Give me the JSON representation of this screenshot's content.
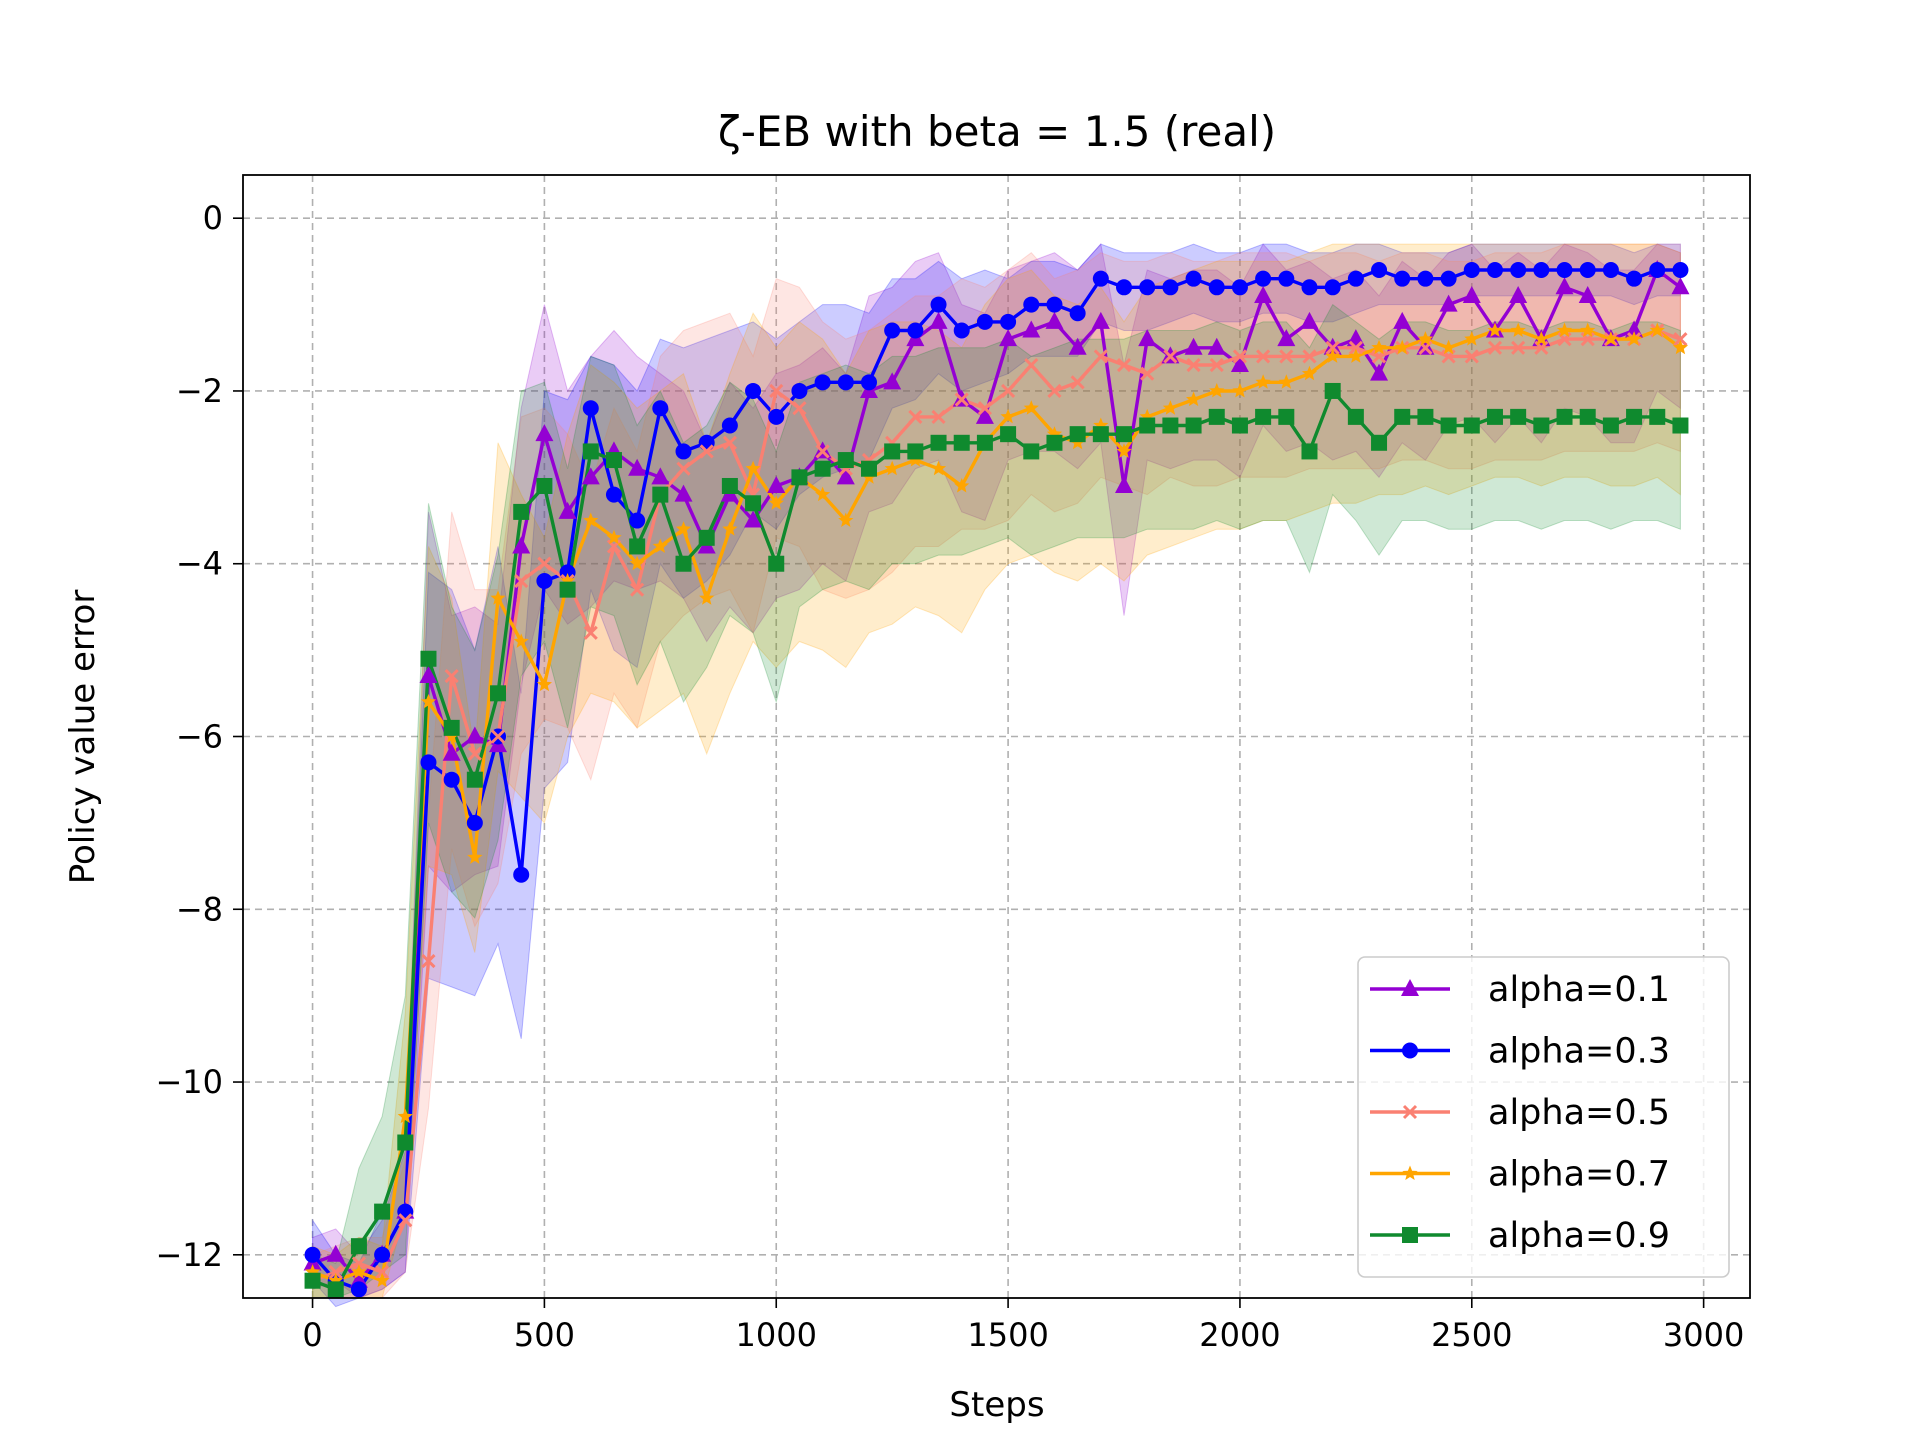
{
  "chart_data": {
    "type": "line",
    "title": "ζ-EB with beta = 1.5 (real)",
    "xlabel": "Steps",
    "ylabel": "Policy value error",
    "xlim": [
      -150,
      3100
    ],
    "ylim": [
      -12.5,
      0.5
    ],
    "xticks": [
      0,
      500,
      1000,
      1500,
      2000,
      2500,
      3000
    ],
    "xtick_labels": [
      "0",
      "500",
      "1000",
      "1500",
      "2000",
      "2500",
      "3000"
    ],
    "yticks": [
      0,
      -2,
      -4,
      -6,
      -8,
      -10,
      -12
    ],
    "ytick_labels": [
      "0",
      "−2",
      "−4",
      "−6",
      "−8",
      "−10",
      "−12"
    ],
    "grid": true,
    "legend_position": "lower-right",
    "x": [
      0,
      50,
      100,
      150,
      200,
      250,
      300,
      350,
      400,
      450,
      500,
      550,
      600,
      650,
      700,
      750,
      800,
      850,
      900,
      950,
      1000,
      1050,
      1100,
      1150,
      1200,
      1250,
      1300,
      1350,
      1400,
      1450,
      1500,
      1550,
      1600,
      1650,
      1700,
      1750,
      1800,
      1850,
      1900,
      1950,
      2000,
      2050,
      2100,
      2150,
      2200,
      2250,
      2300,
      2350,
      2400,
      2450,
      2500,
      2550,
      2600,
      2650,
      2700,
      2750,
      2800,
      2850,
      2900,
      2950
    ],
    "series": [
      {
        "name": "alpha=0.1",
        "color": "#9400D3",
        "marker": "triangle",
        "values": [
          -12.1,
          -12.0,
          -12.3,
          -12.0,
          -11.5,
          -5.3,
          -6.2,
          -6.0,
          -6.1,
          -3.8,
          -2.5,
          -3.4,
          -3.0,
          -2.7,
          -2.9,
          -3.0,
          -3.2,
          -3.8,
          -3.2,
          -3.5,
          -3.1,
          -3.0,
          -2.7,
          -3.0,
          -2.0,
          -1.9,
          -1.4,
          -1.2,
          -2.1,
          -2.3,
          -1.4,
          -1.3,
          -1.2,
          -1.5,
          -1.2,
          -3.1,
          -1.4,
          -1.6,
          -1.5,
          -1.5,
          -1.7,
          -0.9,
          -1.4,
          -1.2,
          -1.5,
          -1.4,
          -1.8,
          -1.2,
          -1.5,
          -1.0,
          -0.9,
          -1.3,
          -0.9,
          -1.4,
          -0.8,
          -0.9,
          -1.4,
          -1.3,
          -0.6,
          -0.8
        ],
        "lower": [
          -12.4,
          -12.3,
          -12.5,
          -12.4,
          -12.2,
          -7.5,
          -7.8,
          -7.6,
          -7.5,
          -5.4,
          -4.3,
          -4.7,
          -4.5,
          -4.2,
          -4.3,
          -4.2,
          -4.4,
          -4.9,
          -4.5,
          -4.8,
          -4.4,
          -4.3,
          -4.0,
          -4.2,
          -3.4,
          -3.3,
          -2.9,
          -2.8,
          -3.4,
          -3.5,
          -2.8,
          -2.7,
          -2.7,
          -2.9,
          -2.6,
          -4.6,
          -2.8,
          -2.9,
          -2.8,
          -2.8,
          -3.0,
          -2.4,
          -2.7,
          -2.6,
          -2.8,
          -2.7,
          -3.0,
          -2.6,
          -2.8,
          -2.4,
          -2.3,
          -2.6,
          -2.3,
          -2.6,
          -2.2,
          -2.3,
          -2.6,
          -2.6,
          -2.0,
          -2.2
        ],
        "upper": [
          -11.8,
          -11.7,
          -12.0,
          -11.6,
          -10.8,
          -3.4,
          -4.6,
          -4.5,
          -4.7,
          -2.2,
          -1.0,
          -2.0,
          -1.6,
          -1.3,
          -1.6,
          -1.8,
          -2.0,
          -2.6,
          -1.9,
          -2.2,
          -1.8,
          -1.7,
          -1.5,
          -1.8,
          -0.9,
          -0.8,
          -0.5,
          -0.4,
          -1.0,
          -1.1,
          -0.6,
          -0.5,
          -0.4,
          -0.6,
          -0.3,
          -1.7,
          -0.6,
          -0.7,
          -0.6,
          -0.6,
          -0.8,
          -0.3,
          -0.6,
          -0.5,
          -0.7,
          -0.6,
          -0.9,
          -0.5,
          -0.7,
          -0.4,
          -0.3,
          -0.6,
          -0.4,
          -0.6,
          -0.3,
          -0.4,
          -0.6,
          -0.6,
          -0.3,
          -0.4
        ]
      },
      {
        "name": "alpha=0.3",
        "color": "#0000FF",
        "marker": "circle",
        "values": [
          -12.0,
          -12.3,
          -12.4,
          -12.0,
          -11.5,
          -6.3,
          -6.5,
          -7.0,
          -6.0,
          -7.6,
          -4.2,
          -4.1,
          -2.2,
          -3.2,
          -3.5,
          -2.2,
          -2.7,
          -2.6,
          -2.4,
          -2.0,
          -2.3,
          -2.0,
          -1.9,
          -1.9,
          -1.9,
          -1.3,
          -1.3,
          -1.0,
          -1.3,
          -1.2,
          -1.2,
          -1.0,
          -1.0,
          -1.1,
          -0.7,
          -0.8,
          -0.8,
          -0.8,
          -0.7,
          -0.8,
          -0.8,
          -0.7,
          -0.7,
          -0.8,
          -0.8,
          -0.7,
          -0.6,
          -0.7,
          -0.7,
          -0.7,
          -0.6,
          -0.6,
          -0.6,
          -0.6,
          -0.6,
          -0.6,
          -0.6,
          -0.7,
          -0.6,
          -0.6
        ],
        "lower": [
          -12.3,
          -12.6,
          -12.5,
          -12.4,
          -12.2,
          -8.8,
          -8.9,
          -9.0,
          -8.4,
          -9.5,
          -6.6,
          -6.3,
          -4.3,
          -5.0,
          -5.2,
          -4.0,
          -4.4,
          -4.2,
          -3.9,
          -3.4,
          -3.6,
          -3.2,
          -3.0,
          -2.9,
          -2.8,
          -2.2,
          -2.1,
          -1.8,
          -2.0,
          -1.9,
          -1.8,
          -1.6,
          -1.6,
          -1.6,
          -1.2,
          -1.3,
          -1.3,
          -1.2,
          -1.1,
          -1.2,
          -1.2,
          -1.1,
          -1.1,
          -1.2,
          -1.2,
          -1.1,
          -1.0,
          -1.0,
          -1.0,
          -1.0,
          -0.9,
          -0.9,
          -0.9,
          -0.9,
          -0.9,
          -0.9,
          -0.9,
          -1.0,
          -0.9,
          -0.9
        ],
        "upper": [
          -11.6,
          -12.0,
          -12.1,
          -11.5,
          -10.7,
          -4.1,
          -4.3,
          -5.0,
          -3.8,
          -5.5,
          -2.0,
          -2.1,
          -1.6,
          -1.7,
          -2.0,
          -1.4,
          -1.5,
          -1.4,
          -1.3,
          -1.2,
          -1.4,
          -1.2,
          -1.0,
          -1.0,
          -1.1,
          -0.7,
          -0.7,
          -0.5,
          -0.7,
          -0.6,
          -0.7,
          -0.5,
          -0.5,
          -0.6,
          -0.3,
          -0.4,
          -0.4,
          -0.4,
          -0.3,
          -0.4,
          -0.4,
          -0.3,
          -0.3,
          -0.4,
          -0.4,
          -0.3,
          -0.3,
          -0.4,
          -0.4,
          -0.4,
          -0.3,
          -0.3,
          -0.3,
          -0.3,
          -0.3,
          -0.3,
          -0.3,
          -0.4,
          -0.3,
          -0.3
        ]
      },
      {
        "name": "alpha=0.5",
        "color": "#FA8072",
        "marker": "x",
        "values": [
          -12.3,
          -12.2,
          -12.1,
          -12.2,
          -11.6,
          -8.6,
          -5.3,
          -6.2,
          -6.0,
          -4.2,
          -4.0,
          -4.2,
          -4.8,
          -3.8,
          -4.3,
          -3.2,
          -2.9,
          -2.7,
          -2.6,
          -3.2,
          -2.0,
          -2.2,
          -2.7,
          -2.9,
          -2.8,
          -2.6,
          -2.3,
          -2.3,
          -2.1,
          -2.2,
          -2.0,
          -1.7,
          -2.0,
          -1.9,
          -1.6,
          -1.7,
          -1.8,
          -1.6,
          -1.7,
          -1.7,
          -1.6,
          -1.6,
          -1.6,
          -1.6,
          -1.5,
          -1.5,
          -1.6,
          -1.5,
          -1.5,
          -1.6,
          -1.6,
          -1.5,
          -1.5,
          -1.5,
          -1.4,
          -1.4,
          -1.4,
          -1.4,
          -1.3,
          -1.4
        ],
        "lower": [
          -12.5,
          -12.5,
          -12.5,
          -12.5,
          -12.2,
          -10.3,
          -7.3,
          -8.2,
          -7.7,
          -6.2,
          -5.8,
          -5.9,
          -6.5,
          -5.5,
          -5.9,
          -4.9,
          -4.6,
          -4.4,
          -4.3,
          -4.8,
          -3.7,
          -3.8,
          -4.3,
          -4.4,
          -4.3,
          -4.1,
          -3.8,
          -3.8,
          -3.6,
          -3.6,
          -3.5,
          -3.2,
          -3.4,
          -3.3,
          -3.0,
          -3.1,
          -3.2,
          -3.0,
          -3.1,
          -3.1,
          -3.0,
          -3.0,
          -3.0,
          -2.9,
          -2.9,
          -2.9,
          -2.9,
          -2.8,
          -2.8,
          -2.9,
          -2.9,
          -2.8,
          -2.8,
          -2.8,
          -2.7,
          -2.7,
          -2.7,
          -2.7,
          -2.6,
          -2.7
        ],
        "upper": [
          -12.0,
          -11.9,
          -11.8,
          -11.8,
          -10.9,
          -6.9,
          -3.4,
          -4.3,
          -4.3,
          -2.3,
          -2.2,
          -2.5,
          -3.1,
          -2.2,
          -2.7,
          -1.6,
          -1.3,
          -1.2,
          -1.1,
          -1.6,
          -0.7,
          -0.8,
          -1.2,
          -1.4,
          -1.3,
          -1.1,
          -0.9,
          -0.9,
          -0.7,
          -0.8,
          -0.6,
          -0.4,
          -0.7,
          -0.6,
          -0.4,
          -0.5,
          -0.5,
          -0.4,
          -0.5,
          -0.5,
          -0.4,
          -0.4,
          -0.4,
          -0.5,
          -0.4,
          -0.4,
          -0.5,
          -0.4,
          -0.4,
          -0.5,
          -0.5,
          -0.4,
          -0.4,
          -0.4,
          -0.3,
          -0.3,
          -0.3,
          -0.3,
          -0.3,
          -0.3
        ]
      },
      {
        "name": "alpha=0.7",
        "color": "#FFA500",
        "marker": "star",
        "values": [
          -12.2,
          -12.3,
          -12.2,
          -12.3,
          -10.4,
          -5.6,
          -6.0,
          -7.4,
          -4.4,
          -4.9,
          -5.4,
          -4.2,
          -3.5,
          -3.7,
          -4.0,
          -3.8,
          -3.6,
          -4.4,
          -3.6,
          -2.9,
          -3.3,
          -3.0,
          -3.2,
          -3.5,
          -3.0,
          -2.9,
          -2.8,
          -2.9,
          -3.1,
          -2.6,
          -2.3,
          -2.2,
          -2.5,
          -2.6,
          -2.4,
          -2.7,
          -2.3,
          -2.2,
          -2.1,
          -2.0,
          -2.0,
          -1.9,
          -1.9,
          -1.8,
          -1.6,
          -1.6,
          -1.5,
          -1.5,
          -1.4,
          -1.5,
          -1.4,
          -1.3,
          -1.3,
          -1.4,
          -1.3,
          -1.3,
          -1.4,
          -1.4,
          -1.3,
          -1.5
        ],
        "lower": [
          -12.5,
          -12.5,
          -12.5,
          -12.5,
          -11.5,
          -7.5,
          -7.6,
          -8.5,
          -6.4,
          -6.7,
          -7.0,
          -6.0,
          -5.5,
          -5.6,
          -5.9,
          -5.7,
          -5.5,
          -6.2,
          -5.5,
          -4.9,
          -5.2,
          -4.9,
          -5.0,
          -5.2,
          -4.8,
          -4.7,
          -4.5,
          -4.6,
          -4.8,
          -4.3,
          -4.0,
          -3.9,
          -4.1,
          -4.2,
          -4.0,
          -4.2,
          -3.9,
          -3.8,
          -3.7,
          -3.6,
          -3.6,
          -3.5,
          -3.5,
          -3.4,
          -3.3,
          -3.3,
          -3.2,
          -3.2,
          -3.1,
          -3.2,
          -3.1,
          -3.0,
          -3.0,
          -3.1,
          -3.0,
          -3.0,
          -3.1,
          -3.1,
          -3.0,
          -3.2
        ],
        "upper": [
          -11.9,
          -12.0,
          -11.8,
          -11.9,
          -9.2,
          -3.8,
          -4.4,
          -6.2,
          -2.6,
          -3.2,
          -3.7,
          -2.5,
          -1.7,
          -1.9,
          -2.2,
          -2.0,
          -1.8,
          -2.6,
          -1.8,
          -1.1,
          -1.5,
          -1.2,
          -1.4,
          -1.8,
          -1.3,
          -1.2,
          -1.2,
          -1.3,
          -1.5,
          -1.0,
          -0.7,
          -0.6,
          -0.9,
          -1.0,
          -0.8,
          -1.2,
          -0.8,
          -0.7,
          -0.6,
          -0.5,
          -0.5,
          -0.5,
          -0.5,
          -0.4,
          -0.3,
          -0.3,
          -0.3,
          -0.3,
          -0.3,
          -0.3,
          -0.3,
          -0.3,
          -0.3,
          -0.3,
          -0.3,
          -0.3,
          -0.3,
          -0.3,
          -0.3,
          -0.4
        ]
      },
      {
        "name": "alpha=0.9",
        "color": "#0F8A2E",
        "marker": "square",
        "values": [
          -12.3,
          -12.4,
          -11.9,
          -11.5,
          -10.7,
          -5.1,
          -5.9,
          -6.5,
          -5.5,
          -3.4,
          -3.1,
          -4.3,
          -2.7,
          -2.8,
          -3.8,
          -3.2,
          -4.0,
          -3.7,
          -3.1,
          -3.3,
          -4.0,
          -3.0,
          -2.9,
          -2.8,
          -2.9,
          -2.7,
          -2.7,
          -2.6,
          -2.6,
          -2.6,
          -2.5,
          -2.7,
          -2.6,
          -2.5,
          -2.5,
          -2.5,
          -2.4,
          -2.4,
          -2.4,
          -2.3,
          -2.4,
          -2.3,
          -2.3,
          -2.7,
          -2.0,
          -2.3,
          -2.6,
          -2.3,
          -2.3,
          -2.4,
          -2.4,
          -2.3,
          -2.3,
          -2.4,
          -2.3,
          -2.3,
          -2.4,
          -2.3,
          -2.3,
          -2.4
        ],
        "lower": [
          -12.5,
          -12.5,
          -12.4,
          -12.2,
          -12.0,
          -7.0,
          -7.8,
          -8.1,
          -7.2,
          -5.3,
          -4.9,
          -5.9,
          -4.5,
          -4.6,
          -5.4,
          -4.9,
          -5.6,
          -5.2,
          -4.6,
          -4.8,
          -5.6,
          -4.5,
          -4.3,
          -4.2,
          -4.3,
          -4.0,
          -4.0,
          -3.9,
          -3.9,
          -3.8,
          -3.7,
          -3.9,
          -3.8,
          -3.7,
          -3.7,
          -3.7,
          -3.6,
          -3.6,
          -3.6,
          -3.5,
          -3.6,
          -3.5,
          -3.5,
          -4.1,
          -3.2,
          -3.5,
          -3.9,
          -3.5,
          -3.5,
          -3.6,
          -3.6,
          -3.5,
          -3.5,
          -3.6,
          -3.5,
          -3.5,
          -3.6,
          -3.5,
          -3.5,
          -3.6
        ],
        "upper": [
          -12.0,
          -12.1,
          -11.0,
          -10.4,
          -9.0,
          -3.3,
          -4.5,
          -5.0,
          -3.9,
          -2.0,
          -1.9,
          -2.9,
          -1.6,
          -1.7,
          -2.4,
          -2.0,
          -2.6,
          -2.4,
          -1.9,
          -2.1,
          -2.7,
          -1.9,
          -1.8,
          -1.7,
          -1.8,
          -1.6,
          -1.6,
          -1.5,
          -1.5,
          -1.5,
          -1.4,
          -1.6,
          -1.5,
          -1.4,
          -1.4,
          -1.4,
          -1.3,
          -1.3,
          -1.3,
          -1.2,
          -1.3,
          -1.2,
          -1.2,
          -1.5,
          -1.0,
          -1.2,
          -1.4,
          -1.2,
          -1.2,
          -1.3,
          -1.3,
          -1.2,
          -1.2,
          -1.3,
          -1.2,
          -1.2,
          -1.3,
          -1.2,
          -1.2,
          -1.3
        ]
      }
    ]
  }
}
